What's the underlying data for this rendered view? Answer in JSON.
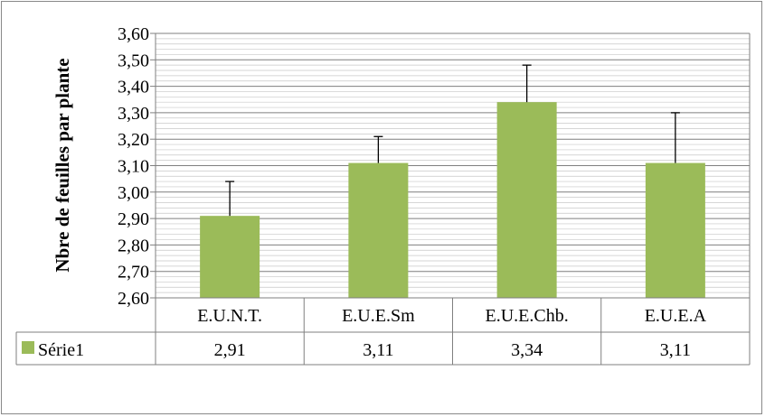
{
  "chart_data": {
    "type": "bar",
    "title": "",
    "xlabel": "",
    "ylabel": "Nbre de feuilles par plante",
    "categories": [
      "E.U.N.T.",
      "E.U.E.Sm",
      "E.U.E.Chb.",
      "E.U.E.A"
    ],
    "series": [
      {
        "name": "Série1",
        "values": [
          2.91,
          3.11,
          3.34,
          3.11
        ],
        "error_plus": [
          0.13,
          0.1,
          0.14,
          0.19
        ],
        "color": "#9bbb59",
        "value_labels": [
          "2,91",
          "3,11",
          "3,34",
          "3,11"
        ]
      }
    ],
    "ylim": [
      2.6,
      3.6
    ],
    "y_ticks": [
      "2,60",
      "2,70",
      "2,80",
      "2,90",
      "3,00",
      "3,10",
      "3,20",
      "3,30",
      "3,40",
      "3,50",
      "3,60"
    ],
    "grid": "horizontal major and minor",
    "legend": "data-table",
    "data_table": true
  }
}
